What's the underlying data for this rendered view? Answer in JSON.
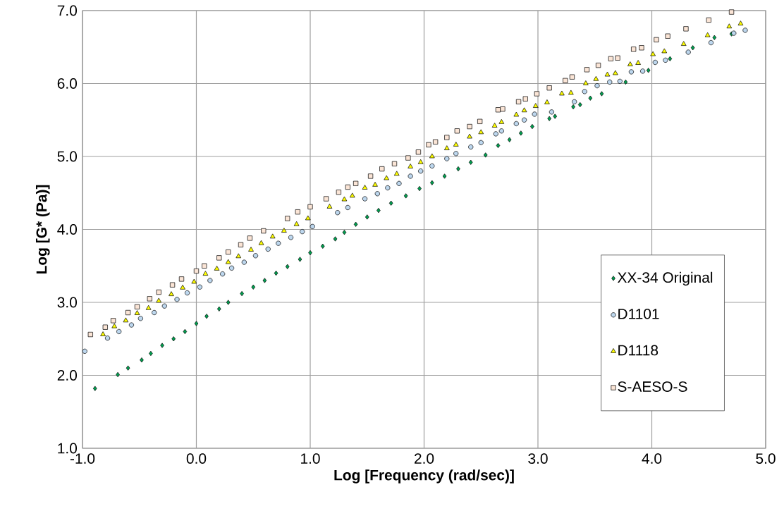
{
  "chart_data": {
    "type": "scatter",
    "xlabel": "Log [Frequency (rad/sec)]",
    "ylabel": "Log [G* (Pa)]",
    "xlim": [
      -1.0,
      5.0
    ],
    "ylim": [
      1.0,
      7.0
    ],
    "xticks": [
      {
        "value": -1,
        "label": "-1.0"
      },
      {
        "value": 0,
        "label": "0.0"
      },
      {
        "value": 1,
        "label": "1.0"
      },
      {
        "value": 2,
        "label": "2.0"
      },
      {
        "value": 3,
        "label": "3.0"
      },
      {
        "value": 4,
        "label": "4.0"
      },
      {
        "value": 5,
        "label": "5.0"
      }
    ],
    "yticks": [
      {
        "value": 1,
        "label": "1.0"
      },
      {
        "value": 2,
        "label": "2.0"
      },
      {
        "value": 3,
        "label": "3.0"
      },
      {
        "value": 4,
        "label": "4.0"
      },
      {
        "value": 5,
        "label": "5.0"
      },
      {
        "value": 6,
        "label": "6.0"
      },
      {
        "value": 7,
        "label": "7.0"
      }
    ],
    "grid": true,
    "legend": "bottom right",
    "series": [
      {
        "name": "XX-34 Original",
        "color": "#00a050",
        "marker": "diamond",
        "x": [
          -0.89,
          -0.69,
          -0.6,
          -0.48,
          -0.4,
          -0.3,
          -0.2,
          -0.1,
          0.0,
          0.09,
          0.2,
          0.28,
          0.4,
          0.5,
          0.6,
          0.7,
          0.8,
          0.91,
          1.0,
          1.11,
          1.22,
          1.3,
          1.4,
          1.5,
          1.6,
          1.71,
          1.84,
          1.96,
          2.07,
          2.18,
          2.3,
          2.41,
          2.54,
          2.65,
          2.75,
          2.85,
          2.95,
          3.1,
          3.15,
          3.31,
          3.37,
          3.46,
          3.56,
          3.77,
          3.97,
          4.16,
          4.36,
          4.55,
          4.7
        ],
        "values": [
          1.82,
          2.01,
          2.1,
          2.21,
          2.3,
          2.41,
          2.5,
          2.6,
          2.71,
          2.81,
          2.91,
          3.0,
          3.12,
          3.21,
          3.3,
          3.4,
          3.49,
          3.59,
          3.68,
          3.77,
          3.87,
          3.96,
          4.07,
          4.17,
          4.26,
          4.36,
          4.46,
          4.56,
          4.64,
          4.73,
          4.83,
          4.92,
          5.02,
          5.15,
          5.23,
          5.32,
          5.41,
          5.52,
          5.55,
          5.68,
          5.71,
          5.8,
          5.86,
          6.02,
          6.18,
          6.34,
          6.49,
          6.63,
          6.68
        ]
      },
      {
        "name": "D1101",
        "color": "#bdd7ee",
        "marker": "circle",
        "x": [
          -0.98,
          -0.78,
          -0.68,
          -0.57,
          -0.49,
          -0.37,
          -0.28,
          -0.17,
          -0.08,
          0.03,
          0.12,
          0.23,
          0.31,
          0.42,
          0.52,
          0.63,
          0.72,
          0.83,
          0.93,
          1.02,
          1.24,
          1.33,
          1.48,
          1.59,
          1.68,
          1.78,
          1.88,
          1.97,
          2.07,
          2.2,
          2.28,
          2.41,
          2.5,
          2.63,
          2.68,
          2.81,
          2.88,
          2.97,
          3.12,
          3.32,
          3.41,
          3.52,
          3.63,
          3.72,
          3.82,
          3.92,
          4.03,
          4.12,
          4.32,
          4.52,
          4.72,
          4.82
        ],
        "values": [
          2.33,
          2.51,
          2.6,
          2.69,
          2.78,
          2.86,
          2.95,
          3.04,
          3.13,
          3.21,
          3.3,
          3.39,
          3.47,
          3.55,
          3.64,
          3.73,
          3.81,
          3.89,
          3.97,
          4.04,
          4.23,
          4.3,
          4.42,
          4.49,
          4.57,
          4.63,
          4.73,
          4.8,
          4.87,
          4.97,
          5.04,
          5.13,
          5.19,
          5.31,
          5.35,
          5.45,
          5.5,
          5.58,
          5.61,
          5.75,
          5.89,
          5.97,
          6.02,
          6.03,
          6.16,
          6.17,
          6.29,
          6.32,
          6.43,
          6.56,
          6.69,
          6.73
        ]
      },
      {
        "name": "D1118",
        "color": "#ffff00",
        "marker": "triangle",
        "x": [
          -0.82,
          -0.72,
          -0.62,
          -0.52,
          -0.42,
          -0.33,
          -0.22,
          -0.12,
          -0.02,
          0.08,
          0.18,
          0.28,
          0.37,
          0.48,
          0.57,
          0.67,
          0.77,
          0.88,
          0.98,
          1.17,
          1.3,
          1.37,
          1.48,
          1.57,
          1.67,
          1.76,
          1.88,
          1.97,
          2.07,
          2.2,
          2.28,
          2.4,
          2.5,
          2.62,
          2.68,
          2.81,
          2.88,
          2.98,
          3.08,
          3.21,
          3.29,
          3.42,
          3.51,
          3.61,
          3.68,
          3.81,
          3.88,
          4.01,
          4.11,
          4.28,
          4.49,
          4.68,
          4.78
        ],
        "values": [
          2.56,
          2.67,
          2.75,
          2.85,
          2.92,
          3.02,
          3.11,
          3.2,
          3.28,
          3.39,
          3.46,
          3.55,
          3.63,
          3.72,
          3.81,
          3.9,
          3.98,
          4.07,
          4.15,
          4.31,
          4.41,
          4.46,
          4.57,
          4.61,
          4.7,
          4.76,
          4.86,
          4.92,
          5.0,
          5.11,
          5.16,
          5.27,
          5.33,
          5.42,
          5.47,
          5.57,
          5.63,
          5.69,
          5.74,
          5.86,
          5.87,
          6.0,
          6.06,
          6.12,
          6.14,
          6.26,
          6.28,
          6.4,
          6.44,
          6.54,
          6.66,
          6.78,
          6.82
        ]
      },
      {
        "name": "S-AESO-S",
        "color": "#fbe5d6",
        "marker": "square",
        "x": [
          -0.93,
          -0.8,
          -0.73,
          -0.6,
          -0.52,
          -0.41,
          -0.33,
          -0.21,
          -0.13,
          0.0,
          0.07,
          0.2,
          0.28,
          0.39,
          0.47,
          0.59,
          0.8,
          0.89,
          1.0,
          1.14,
          1.25,
          1.33,
          1.4,
          1.53,
          1.63,
          1.74,
          1.86,
          1.95,
          2.04,
          2.1,
          2.2,
          2.29,
          2.4,
          2.49,
          2.65,
          2.69,
          2.83,
          2.89,
          2.99,
          3.1,
          3.24,
          3.3,
          3.43,
          3.53,
          3.64,
          3.7,
          3.84,
          3.91,
          4.04,
          4.14,
          4.3,
          4.5,
          4.7
        ],
        "values": [
          2.56,
          2.66,
          2.75,
          2.86,
          2.94,
          3.05,
          3.14,
          3.24,
          3.32,
          3.43,
          3.5,
          3.61,
          3.69,
          3.79,
          3.88,
          3.98,
          4.15,
          4.24,
          4.31,
          4.42,
          4.51,
          4.58,
          4.63,
          4.73,
          4.83,
          4.9,
          4.98,
          5.06,
          5.16,
          5.2,
          5.26,
          5.35,
          5.41,
          5.48,
          5.64,
          5.65,
          5.75,
          5.79,
          5.86,
          5.94,
          6.04,
          6.09,
          6.19,
          6.25,
          6.34,
          6.35,
          6.47,
          6.49,
          6.6,
          6.65,
          6.75,
          6.87,
          6.98
        ]
      }
    ]
  }
}
